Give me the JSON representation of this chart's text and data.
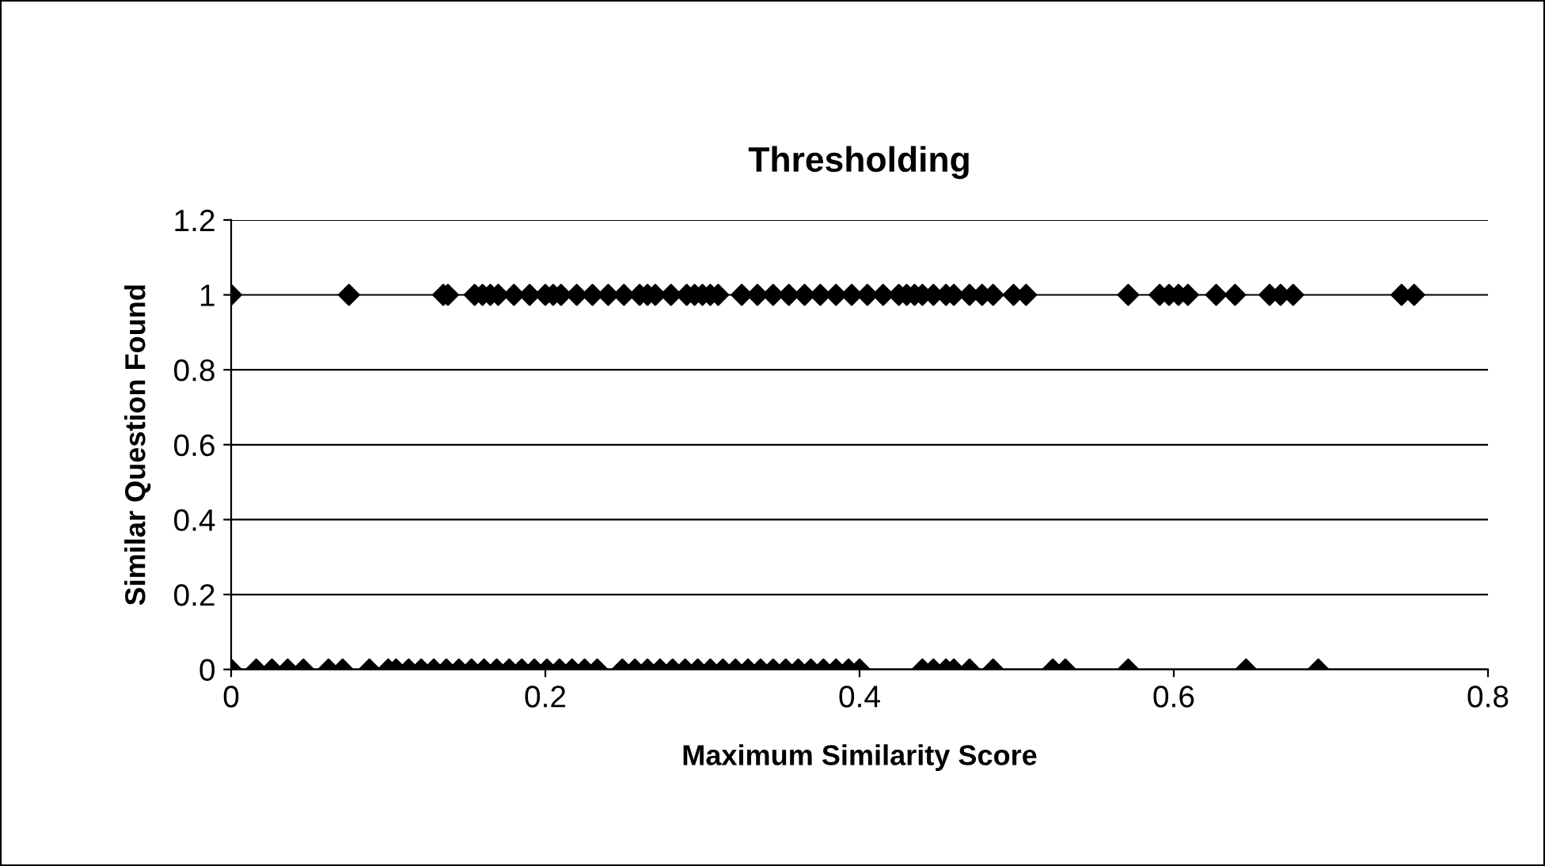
{
  "chart_data": {
    "type": "scatter",
    "title": "Thresholding",
    "xlabel": "Maximum Similarity Score",
    "ylabel": "Similar Question Found",
    "xlim": [
      0,
      0.8
    ],
    "xticks": [
      0,
      0.2,
      0.4,
      0.6,
      0.8
    ],
    "ylim": [
      0,
      1.2
    ],
    "yticks": [
      0,
      0.2,
      0.4,
      0.6,
      0.8,
      1,
      1.2
    ],
    "grid": "y",
    "marker": "diamond",
    "legend": false,
    "series": [
      {
        "color": "#000000",
        "x": [
          0,
          0.075,
          0.135,
          0.138,
          0.155,
          0.16,
          0.165,
          0.17,
          0.18,
          0.19,
          0.2,
          0.205,
          0.21,
          0.22,
          0.23,
          0.24,
          0.25,
          0.26,
          0.265,
          0.27,
          0.28,
          0.29,
          0.295,
          0.3,
          0.305,
          0.31,
          0.325,
          0.335,
          0.345,
          0.355,
          0.365,
          0.375,
          0.385,
          0.395,
          0.405,
          0.415,
          0.425,
          0.43,
          0.435,
          0.44,
          0.447,
          0.455,
          0.46,
          0.47,
          0.478,
          0.485,
          0.498,
          0.506,
          0.571,
          0.591,
          0.597,
          0.603,
          0.609,
          0.627,
          0.639,
          0.661,
          0.668,
          0.676,
          0.745,
          0.753,
          0,
          0.016,
          0.026,
          0.036,
          0.046,
          0.062,
          0.071,
          0.088,
          0.1,
          0.105,
          0.113,
          0.121,
          0.129,
          0.137,
          0.145,
          0.153,
          0.161,
          0.169,
          0.177,
          0.185,
          0.193,
          0.201,
          0.209,
          0.217,
          0.225,
          0.233,
          0.249,
          0.257,
          0.265,
          0.273,
          0.281,
          0.289,
          0.297,
          0.305,
          0.313,
          0.321,
          0.329,
          0.337,
          0.345,
          0.353,
          0.361,
          0.369,
          0.377,
          0.385,
          0.393,
          0.4,
          0.44,
          0.447,
          0.455,
          0.46,
          0.47,
          0.485,
          0.523,
          0.531,
          0.571,
          0.646,
          0.692
        ],
        "values": [
          1,
          1,
          1,
          1,
          1,
          1,
          1,
          1,
          1,
          1,
          1,
          1,
          1,
          1,
          1,
          1,
          1,
          1,
          1,
          1,
          1,
          1,
          1,
          1,
          1,
          1,
          1,
          1,
          1,
          1,
          1,
          1,
          1,
          1,
          1,
          1,
          1,
          1,
          1,
          1,
          1,
          1,
          1,
          1,
          1,
          1,
          1,
          1,
          1,
          1,
          1,
          1,
          1,
          1,
          1,
          1,
          1,
          1,
          1,
          1,
          0,
          0,
          0,
          0,
          0,
          0,
          0,
          0,
          0,
          0,
          0,
          0,
          0,
          0,
          0,
          0,
          0,
          0,
          0,
          0,
          0,
          0,
          0,
          0,
          0,
          0,
          0,
          0,
          0,
          0,
          0,
          0,
          0,
          0,
          0,
          0,
          0,
          0,
          0,
          0,
          0,
          0,
          0,
          0,
          0,
          0,
          0,
          0,
          0,
          0,
          0,
          0,
          0,
          0,
          0,
          0,
          0
        ]
      }
    ]
  }
}
